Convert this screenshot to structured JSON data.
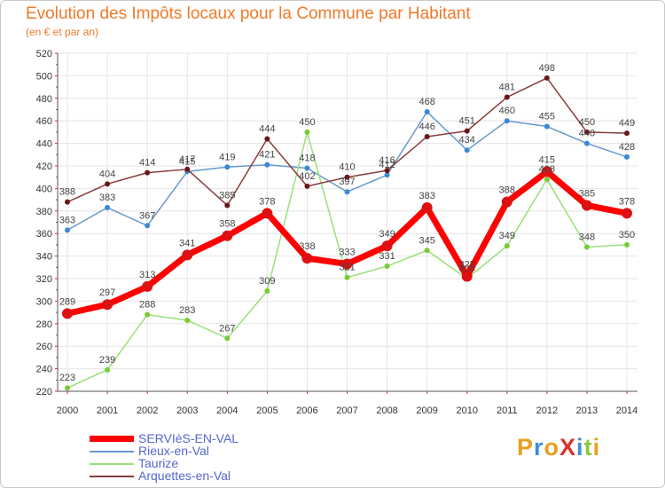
{
  "title": "Evolution des Impôts locaux pour la Commune par Habitant",
  "subtitle": "(en € et par an)",
  "logo": {
    "text": "ProXiti",
    "letters": [
      {
        "ch": "P",
        "color": "#e8a020"
      },
      {
        "ch": "r",
        "color": "#3c8ed8"
      },
      {
        "ch": "o",
        "color": "#e8a020"
      },
      {
        "ch": "X",
        "color": "#d8342c"
      },
      {
        "ch": "i",
        "color": "#3c8ed8"
      },
      {
        "ch": "t",
        "color": "#8cc63f"
      },
      {
        "ch": "i",
        "color": "#e8a020"
      }
    ]
  },
  "chart_data": {
    "type": "line",
    "title": "Evolution des Impôts locaux pour la Commune par Habitant",
    "subtitle": "(en € et par an)",
    "xlabel": "",
    "ylabel": "",
    "x": [
      "2000",
      "2001",
      "2002",
      "2003",
      "2004",
      "2005",
      "2006",
      "2007",
      "2008",
      "2009",
      "2010",
      "2011",
      "2012",
      "2013",
      "2014"
    ],
    "ylim": [
      220,
      520
    ],
    "yticks": [
      220,
      240,
      260,
      280,
      300,
      320,
      340,
      360,
      380,
      400,
      420,
      440,
      460,
      480,
      500,
      520
    ],
    "grid": true,
    "legend_position": "bottom-left",
    "series": [
      {
        "name": "SERVIèS-EN-VAL",
        "color": "#ff0000",
        "marker": "#dd1111",
        "width": 7,
        "msize": 6,
        "values": [
          289,
          297,
          313,
          341,
          358,
          378,
          338,
          333,
          349,
          383,
          322,
          388,
          415,
          385,
          378
        ],
        "labels": [
          "289",
          "297",
          "313",
          "341",
          "358",
          "378",
          "338",
          "333",
          "349",
          "383",
          "322",
          "388",
          "415",
          "385",
          "378"
        ]
      },
      {
        "name": "Rieux-en-Val",
        "color": "#6699cc",
        "marker": "#3b88d8",
        "width": 1.5,
        "msize": 3,
        "values": [
          363,
          383,
          367,
          415,
          419,
          421,
          418,
          397,
          412,
          468,
          434,
          460,
          455,
          440,
          428
        ],
        "labels": [
          "363",
          "383",
          "367",
          "415",
          "419",
          "421",
          "418",
          "397",
          "412",
          "468",
          "434",
          "460",
          "455",
          "440",
          "428"
        ]
      },
      {
        "name": "Taurize",
        "color": "#99e07a",
        "marker": "#77cc33",
        "width": 1.5,
        "msize": 3,
        "values": [
          223,
          239,
          288,
          283,
          267,
          309,
          450,
          321,
          331,
          345,
          320,
          349,
          408,
          348,
          350
        ],
        "labels": [
          "223",
          "239",
          "288",
          "283",
          "267",
          "309",
          "450",
          "321",
          "331",
          "345",
          "320",
          "349",
          "408",
          "348",
          "350"
        ]
      },
      {
        "name": "Arquettes-en-Val",
        "color": "#8a3a3a",
        "marker": "#6a1616",
        "width": 1.5,
        "msize": 3,
        "values": [
          388,
          404,
          414,
          417,
          385,
          444,
          402,
          410,
          416,
          446,
          451,
          481,
          498,
          450,
          449
        ],
        "labels": [
          "388",
          "404",
          "414",
          "417",
          "385",
          "444",
          "402",
          "410",
          "416",
          "446",
          "451",
          "481",
          "498",
          "450",
          "449"
        ]
      }
    ]
  }
}
